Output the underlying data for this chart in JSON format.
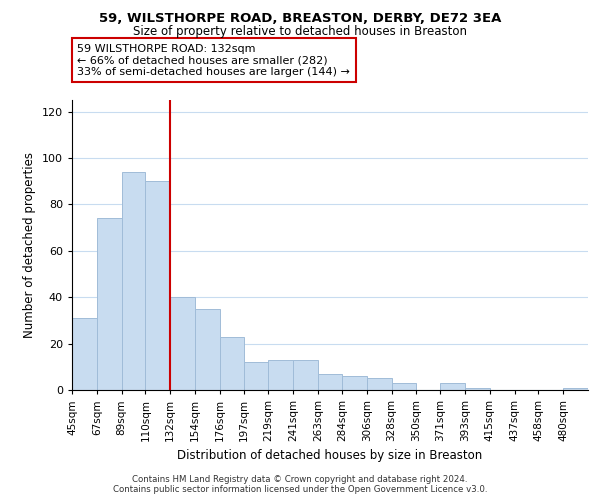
{
  "title": "59, WILSTHORPE ROAD, BREASTON, DERBY, DE72 3EA",
  "subtitle": "Size of property relative to detached houses in Breaston",
  "xlabel": "Distribution of detached houses by size in Breaston",
  "ylabel": "Number of detached properties",
  "bar_color": "#c8dcf0",
  "bar_edge_color": "#a0bcd8",
  "vline_x": 132,
  "vline_color": "#cc0000",
  "categories": [
    "45sqm",
    "67sqm",
    "89sqm",
    "110sqm",
    "132sqm",
    "154sqm",
    "176sqm",
    "197sqm",
    "219sqm",
    "241sqm",
    "263sqm",
    "284sqm",
    "306sqm",
    "328sqm",
    "350sqm",
    "371sqm",
    "393sqm",
    "415sqm",
    "437sqm",
    "458sqm",
    "480sqm"
  ],
  "bin_edges": [
    45,
    67,
    89,
    110,
    132,
    154,
    176,
    197,
    219,
    241,
    263,
    284,
    306,
    328,
    350,
    371,
    393,
    415,
    437,
    458,
    480
  ],
  "values": [
    31,
    74,
    94,
    90,
    40,
    35,
    23,
    12,
    13,
    13,
    7,
    6,
    5,
    3,
    0,
    3,
    1,
    0,
    0,
    0,
    1
  ],
  "ylim": [
    0,
    125
  ],
  "yticks": [
    0,
    20,
    40,
    60,
    80,
    100,
    120
  ],
  "annotation_lines": [
    "59 WILSTHORPE ROAD: 132sqm",
    "← 66% of detached houses are smaller (282)",
    "33% of semi-detached houses are larger (144) →"
  ],
  "footer_line1": "Contains HM Land Registry data © Crown copyright and database right 2024.",
  "footer_line2": "Contains public sector information licensed under the Open Government Licence v3.0.",
  "background_color": "#ffffff",
  "grid_color": "#c8dcf0"
}
